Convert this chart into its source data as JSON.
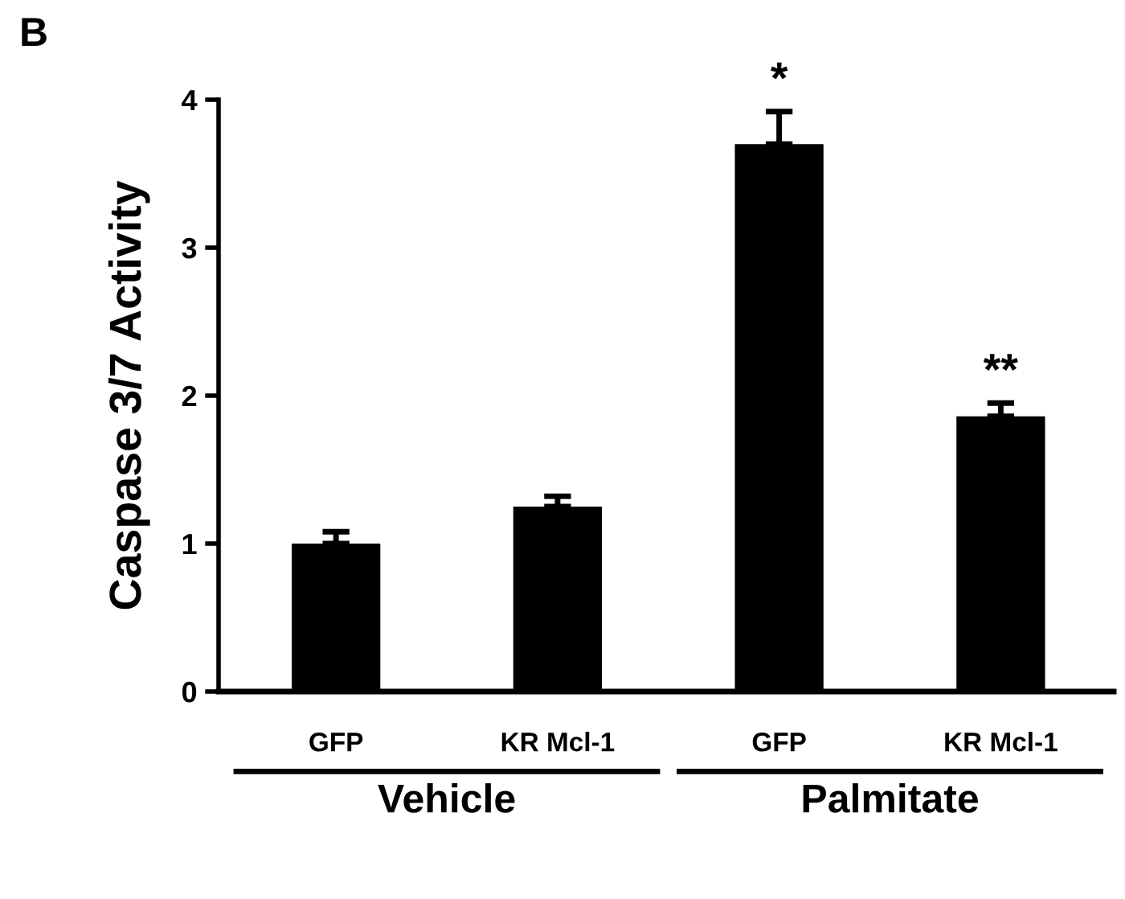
{
  "chart_data": {
    "type": "bar",
    "ylabel": "Caspase 3/7 Activity",
    "categories": [
      "GFP",
      "KR Mcl-1",
      "GFP",
      "KR Mcl-1"
    ],
    "values": [
      1.0,
      1.25,
      3.7,
      1.86
    ],
    "errors": [
      [
        1.0,
        1.08
      ],
      [
        1.25,
        1.32
      ],
      [
        3.7,
        3.92
      ],
      [
        1.86,
        1.95
      ]
    ],
    "value_labels": [
      null,
      null,
      "*",
      "**"
    ],
    "color": "#000000",
    "ylim": [
      0,
      4
    ],
    "yticks": [
      0,
      1,
      2,
      3,
      4
    ],
    "grid": false,
    "legend": false,
    "annotations": [
      "B",
      "Vehicle",
      "Palmitate"
    ]
  }
}
